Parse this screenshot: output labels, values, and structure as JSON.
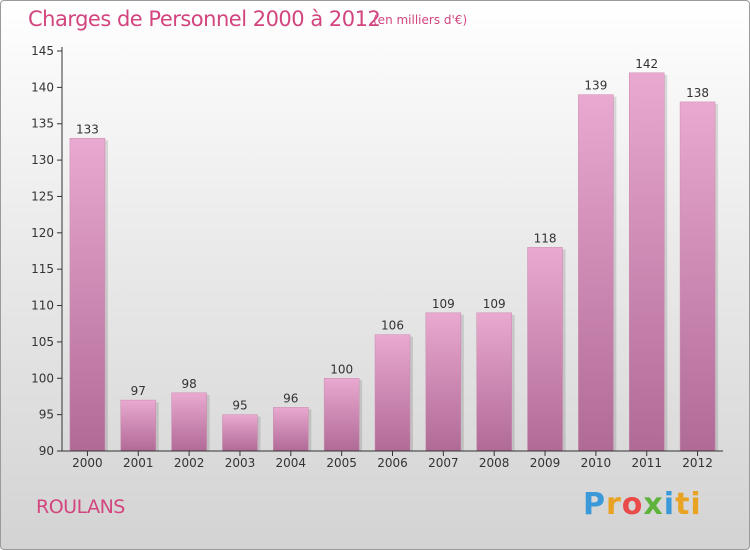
{
  "title": "Charges de Personnel 2000 à 2012",
  "subtitle": "(en milliers d'€)",
  "commune": "ROULANS",
  "logo": [
    "P",
    "r",
    "o",
    "x",
    "i",
    "ti"
  ],
  "colors": {
    "title": "#d2457f",
    "bar_top": "#e9a9d0",
    "bar_bottom": "#b06a96",
    "axis": "#333333"
  },
  "chart_data": {
    "type": "bar",
    "categories": [
      "2000",
      "2001",
      "2002",
      "2003",
      "2004",
      "2005",
      "2006",
      "2007",
      "2008",
      "2009",
      "2010",
      "2011",
      "2012"
    ],
    "values": [
      133,
      97,
      98,
      95,
      96,
      100,
      106,
      109,
      109,
      118,
      139,
      142,
      138
    ],
    "ylim": [
      90,
      145
    ],
    "yticks": [
      90,
      95,
      100,
      105,
      110,
      115,
      120,
      125,
      130,
      135,
      140,
      145
    ],
    "grid": false,
    "legend": "none"
  }
}
